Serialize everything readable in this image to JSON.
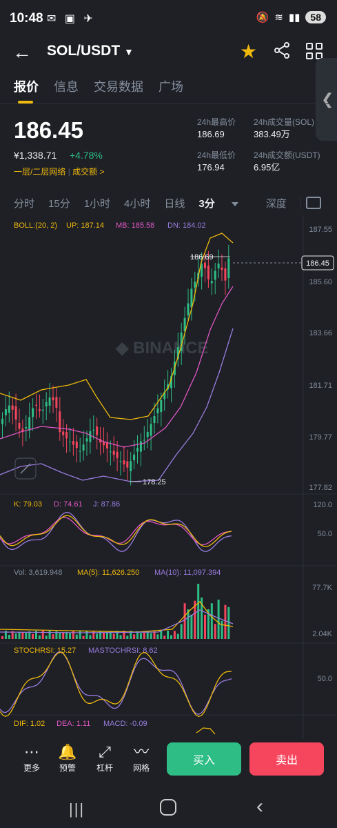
{
  "status_bar": {
    "time": "10:48",
    "battery": "58"
  },
  "header": {
    "pair": "SOL/USDT"
  },
  "tabs": [
    "报价",
    "信息",
    "交易数据",
    "广场"
  ],
  "ticker": {
    "price": "186.45",
    "cny": "¥1,338.71",
    "change": "+4.78%",
    "layer_link": "一层/二层网络",
    "volume_link": "成交额 >",
    "high_label": "24h最高价",
    "high": "186.69",
    "low_label": "24h最低价",
    "low": "176.94",
    "vol_label": "24h成交量(SOL)",
    "vol": "383.49万",
    "amount_label": "24h成交额(USDT)",
    "amount": "6.95亿"
  },
  "intervals": [
    "分时",
    "15分",
    "1小时",
    "4小时",
    "日线",
    "3分",
    "深度"
  ],
  "indicators": {
    "boll": {
      "label": "BOLL:(20, 2)",
      "up": "UP: 187.14",
      "mb": "MB: 185.58",
      "dn": "DN: 184.02"
    },
    "kdj": {
      "k": "K: 79.03",
      "d": "D: 74.61",
      "j": "J: 87.86"
    },
    "vol": {
      "vol": "Vol: 3,619.948",
      "ma5": "MA(5): 11,626.250",
      "ma10": "MA(10): 11,097.394"
    },
    "stoch": {
      "stoch": "STOCHRSI: 15.27",
      "ma": "MASTOCHRSI: 8.62"
    },
    "macd": {
      "dif": "DIF: 1.02",
      "dea": "DEA: 1.11",
      "macd": "MACD: -0.09"
    }
  },
  "price_axis": [
    "187.55",
    "185.60",
    "183.66",
    "181.71",
    "179.77",
    "177.82"
  ],
  "current_price_tag": "186.45",
  "high_marker": "186.69",
  "low_marker": "178.25",
  "kdj_axis": [
    "120.0",
    "50.0"
  ],
  "vol_axis": [
    "77.7K",
    "2.04K"
  ],
  "stoch_axis": [
    "50.0"
  ],
  "watermark": "BINANCE",
  "actions": [
    {
      "label": "更多",
      "icon": "more-icon"
    },
    {
      "label": "预警",
      "icon": "bell-icon"
    },
    {
      "label": "杠杆",
      "icon": "leverage-icon"
    },
    {
      "label": "网格",
      "icon": "grid-trade-icon"
    }
  ],
  "buy_label": "买入",
  "sell_label": "卖出",
  "colors": {
    "up": "#2ebd85",
    "down": "#f6465d",
    "accent": "#f0b90b",
    "mb": "#e056c3",
    "dn": "#9b7de0"
  }
}
